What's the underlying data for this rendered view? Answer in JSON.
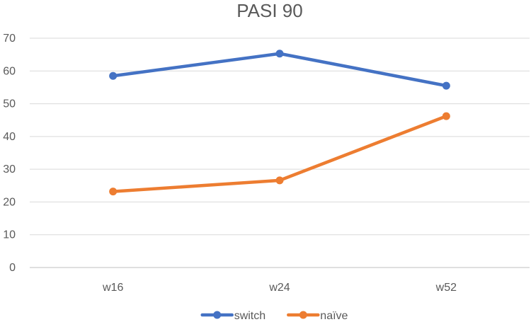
{
  "chart_data": {
    "type": "line",
    "title": "PASI 90",
    "xlabel": "",
    "ylabel": "",
    "categories": [
      "w16",
      "w24",
      "w52"
    ],
    "ylim": [
      0,
      70
    ],
    "yticks": [
      "0",
      "10",
      "20",
      "30",
      "40",
      "50",
      "60",
      "70"
    ],
    "grid": true,
    "legend_position": "bottom",
    "series": [
      {
        "name": "switch",
        "color": "#4472C4",
        "values": [
          58.5,
          65.3,
          55.5
        ]
      },
      {
        "name": "naïve",
        "color": "#ED7D31",
        "values": [
          23.2,
          26.6,
          46.2
        ]
      }
    ]
  }
}
